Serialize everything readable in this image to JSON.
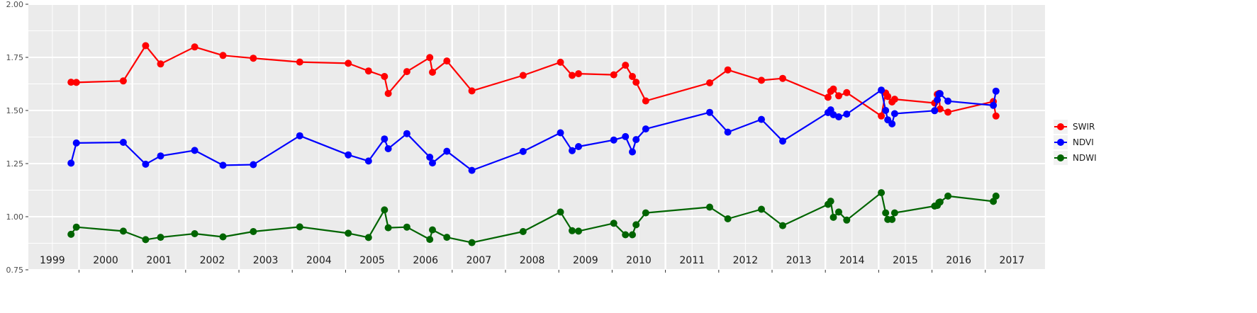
{
  "chart_data": {
    "type": "line",
    "title": "",
    "xlabel": "",
    "ylabel": "",
    "xlim": [
      1998.55,
      2017.62
    ],
    "ylim": [
      0.75,
      2.0
    ],
    "y_ticks": [
      "0.75",
      "1.00",
      "1.25",
      "1.50",
      "1.75",
      "2.00"
    ],
    "year_labels": [
      "1999",
      "2000",
      "2001",
      "2002",
      "2003",
      "2004",
      "2005",
      "2006",
      "2007",
      "2008",
      "2009",
      "2010",
      "2011",
      "2012",
      "2013",
      "2014",
      "2015",
      "2016",
      "2017"
    ],
    "grid": true,
    "legend": "right",
    "x": [
      1999.35,
      1999.45,
      2000.33,
      2000.75,
      2001.03,
      2001.67,
      2002.2,
      2002.77,
      2003.64,
      2004.55,
      2004.93,
      2005.23,
      2005.3,
      2005.65,
      2006.08,
      2006.13,
      2006.4,
      2006.87,
      2007.83,
      2008.53,
      2008.75,
      2008.87,
      2009.53,
      2009.75,
      2009.88,
      2009.95,
      2010.13,
      2011.33,
      2011.67,
      2012.3,
      2012.7,
      2013.55,
      2013.6,
      2013.65,
      2013.75,
      2013.9,
      2014.55,
      2014.63,
      2014.67,
      2014.75,
      2014.8
    ],
    "series": [
      {
        "name": "SWIR",
        "color": "#ff0000",
        "values": [
          1.633,
          1.632,
          1.639,
          1.805,
          1.719,
          1.799,
          1.759,
          1.746,
          1.728,
          1.722,
          1.686,
          1.66,
          1.58,
          1.683,
          1.749,
          1.68,
          1.733,
          1.592,
          1.665,
          1.727,
          1.665,
          1.673,
          1.668,
          1.713,
          1.66,
          1.633,
          1.545,
          1.63,
          1.691,
          1.642,
          1.651,
          1.562,
          1.59,
          1.601,
          1.569,
          1.584,
          1.474,
          1.582,
          1.566,
          1.54,
          1.553
        ]
      },
      {
        "name": "NDVI",
        "color": "#0000ff",
        "values": [
          1.252,
          1.347,
          1.35,
          1.247,
          1.286,
          1.312,
          1.242,
          1.245,
          1.381,
          1.291,
          1.262,
          1.366,
          1.32,
          1.391,
          1.28,
          1.253,
          1.308,
          1.218,
          1.307,
          1.395,
          1.311,
          1.33,
          1.361,
          1.377,
          1.305,
          1.363,
          1.413,
          1.491,
          1.398,
          1.458,
          1.356,
          1.49,
          1.503,
          1.48,
          1.47,
          1.483,
          1.596,
          1.5,
          1.456,
          1.437,
          1.485
        ]
      },
      {
        "name": "NDWI",
        "color": "#006400",
        "values": [
          0.917,
          0.951,
          0.932,
          0.892,
          0.903,
          0.92,
          0.905,
          0.93,
          0.952,
          0.922,
          0.902,
          1.032,
          0.948,
          0.951,
          0.893,
          0.938,
          0.903,
          0.878,
          0.93,
          1.022,
          0.934,
          0.932,
          0.969,
          0.915,
          0.915,
          0.962,
          1.018,
          1.045,
          0.99,
          1.035,
          0.958,
          1.058,
          1.073,
          0.997,
          1.022,
          0.984,
          1.113,
          1.018,
          0.987,
          0.987,
          1.018
        ]
      }
    ],
    "x_extra": [
      2015.55,
      2015.6,
      2015.63,
      2015.65,
      2015.8,
      2016.65,
      2016.7
    ],
    "series_extra": [
      [
        1.535,
        1.576,
        1.58,
        1.507,
        1.492,
        1.542,
        1.474
      ],
      [
        1.499,
        1.55,
        1.577,
        1.579,
        1.544,
        1.524,
        1.591
      ],
      [
        1.05,
        1.053,
        1.067,
        1.069,
        1.097,
        1.072,
        1.097
      ]
    ]
  }
}
